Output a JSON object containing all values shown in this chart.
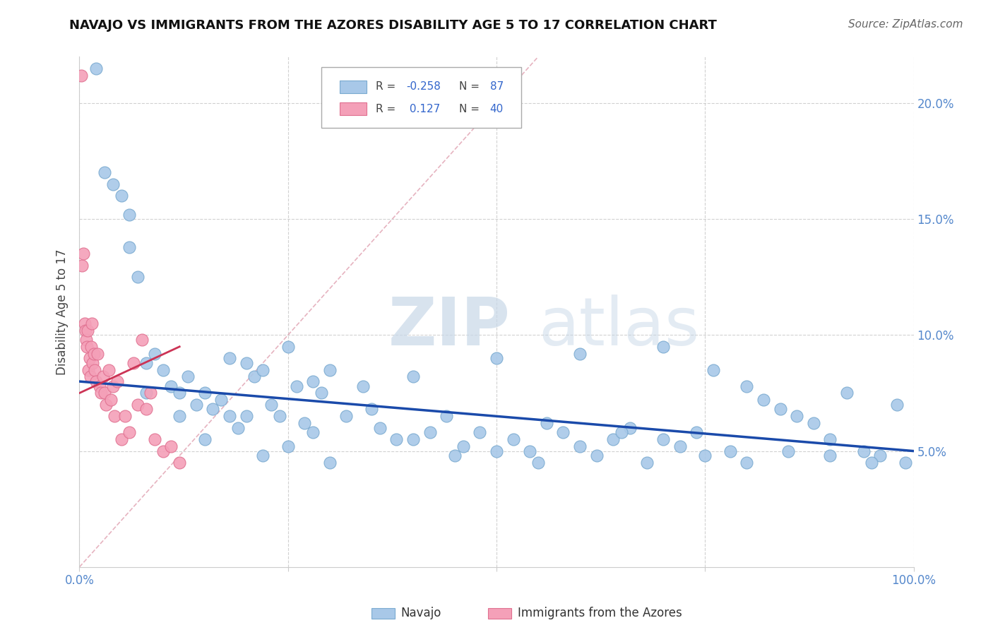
{
  "title": "NAVAJO VS IMMIGRANTS FROM THE AZORES DISABILITY AGE 5 TO 17 CORRELATION CHART",
  "source": "Source: ZipAtlas.com",
  "ylabel": "Disability Age 5 to 17",
  "xlim": [
    0,
    100
  ],
  "ylim": [
    0,
    22
  ],
  "xtick_positions": [
    0,
    25,
    50,
    75,
    100
  ],
  "xticklabels": [
    "0.0%",
    "",
    "",
    "",
    "100.0%"
  ],
  "ytick_positions": [
    5,
    10,
    15,
    20
  ],
  "yticklabels": [
    "5.0%",
    "10.0%",
    "15.0%",
    "20.0%"
  ],
  "navajo_color": "#a8c8e8",
  "navajo_edge": "#7aaad0",
  "azores_color": "#f4a0b8",
  "azores_edge": "#e07090",
  "trendline_navajo_color": "#1a4aaa",
  "trendline_azores_color": "#cc3355",
  "diag_line_color": "#e0a0b0",
  "watermark_color": "#c8d8e8",
  "tick_color": "#5588cc",
  "legend_R1": "-0.258",
  "legend_N1": "87",
  "legend_R2": "0.127",
  "legend_N2": "40",
  "legend_label1": "Navajo",
  "legend_label2": "Immigrants from the Azores",
  "navajo_x": [
    2,
    3,
    4,
    5,
    6,
    6,
    7,
    8,
    8,
    9,
    10,
    11,
    12,
    13,
    14,
    15,
    16,
    17,
    18,
    19,
    20,
    21,
    22,
    23,
    24,
    25,
    26,
    27,
    28,
    29,
    30,
    32,
    34,
    36,
    38,
    40,
    42,
    44,
    46,
    48,
    50,
    52,
    54,
    56,
    58,
    60,
    62,
    64,
    66,
    68,
    70,
    72,
    74,
    76,
    78,
    80,
    82,
    84,
    86,
    88,
    90,
    92,
    94,
    96,
    98,
    99,
    15,
    18,
    22,
    25,
    30,
    35,
    40,
    45,
    50,
    55,
    60,
    65,
    70,
    75,
    80,
    85,
    90,
    95,
    12,
    20,
    28
  ],
  "navajo_y": [
    21.5,
    17.0,
    16.5,
    16.0,
    13.8,
    15.2,
    12.5,
    8.8,
    7.5,
    9.2,
    8.5,
    7.8,
    6.5,
    8.2,
    7.0,
    7.5,
    6.8,
    7.2,
    9.0,
    6.0,
    8.8,
    8.2,
    8.5,
    7.0,
    6.5,
    9.5,
    7.8,
    6.2,
    8.0,
    7.5,
    8.5,
    6.5,
    7.8,
    6.0,
    5.5,
    8.2,
    5.8,
    6.5,
    5.2,
    5.8,
    9.0,
    5.5,
    5.0,
    6.2,
    5.8,
    9.2,
    4.8,
    5.5,
    6.0,
    4.5,
    9.5,
    5.2,
    5.8,
    8.5,
    5.0,
    7.8,
    7.2,
    6.8,
    6.5,
    6.2,
    5.5,
    7.5,
    5.0,
    4.8,
    7.0,
    4.5,
    5.5,
    6.5,
    4.8,
    5.2,
    4.5,
    6.8,
    5.5,
    4.8,
    5.0,
    4.5,
    5.2,
    5.8,
    5.5,
    4.8,
    4.5,
    5.0,
    4.8,
    4.5,
    7.5,
    6.5,
    5.8
  ],
  "azores_x": [
    0.2,
    0.3,
    0.5,
    0.6,
    0.7,
    0.8,
    0.9,
    1.0,
    1.1,
    1.2,
    1.3,
    1.4,
    1.5,
    1.6,
    1.7,
    1.8,
    2.0,
    2.2,
    2.4,
    2.6,
    2.8,
    3.0,
    3.2,
    3.5,
    3.8,
    4.0,
    4.2,
    4.5,
    5.0,
    5.5,
    6.0,
    6.5,
    7.0,
    7.5,
    8.0,
    8.5,
    9.0,
    10.0,
    11.0,
    12.0
  ],
  "azores_y": [
    21.2,
    13.0,
    13.5,
    10.5,
    10.2,
    9.8,
    9.5,
    10.2,
    8.5,
    9.0,
    8.2,
    9.5,
    10.5,
    8.8,
    9.2,
    8.5,
    8.0,
    9.2,
    7.8,
    7.5,
    8.2,
    7.5,
    7.0,
    8.5,
    7.2,
    7.8,
    6.5,
    8.0,
    5.5,
    6.5,
    5.8,
    8.8,
    7.0,
    9.8,
    6.8,
    7.5,
    5.5,
    5.0,
    5.2,
    4.5
  ]
}
